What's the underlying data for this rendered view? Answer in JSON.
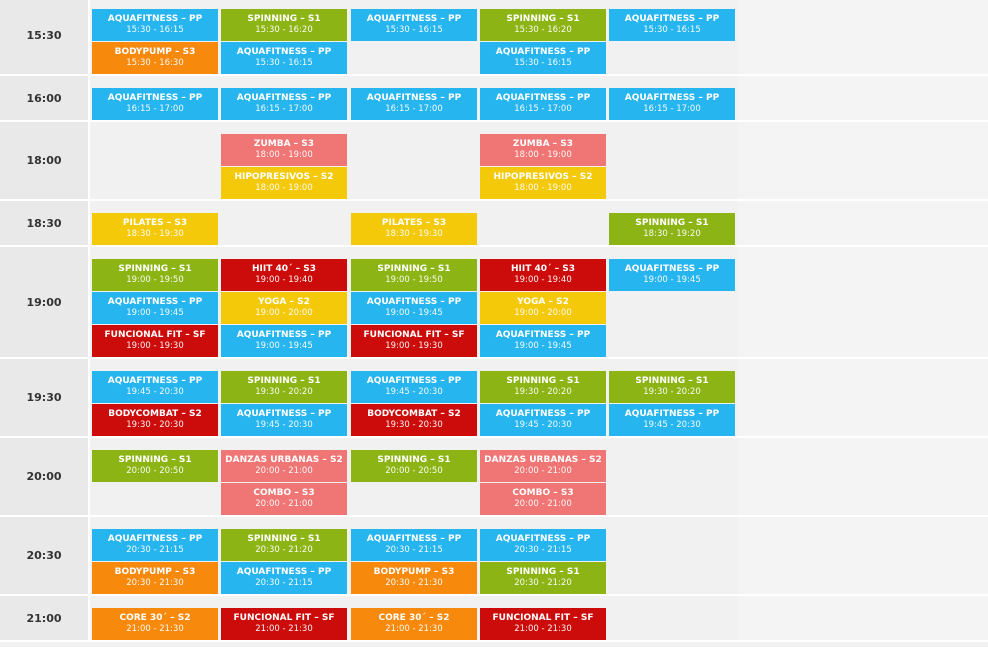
{
  "schedule": [
    {
      "time": "15:30",
      "columns": [
        [
          {
            "name": "AQUAFITNESS – PP",
            "hours": "15:30 - 16:15",
            "color": "#26b5ef"
          },
          {
            "name": "BODYPUMP – S3",
            "hours": "15:30 - 16:30",
            "color": "#f7890c"
          }
        ],
        [
          {
            "name": "SPINNING – S1",
            "hours": "15:30 - 16:20",
            "color": "#8cb414"
          },
          {
            "name": "AQUAFITNESS – PP",
            "hours": "15:30 - 16:15",
            "color": "#26b5ef"
          }
        ],
        [
          {
            "name": "AQUAFITNESS – PP",
            "hours": "15:30 - 16:15",
            "color": "#26b5ef"
          }
        ],
        [
          {
            "name": "SPINNING – S1",
            "hours": "15:30 - 16:20",
            "color": "#8cb414"
          },
          {
            "name": "AQUAFITNESS – PP",
            "hours": "15:30 - 16:15",
            "color": "#26b5ef"
          }
        ],
        [
          {
            "name": "AQUAFITNESS – PP",
            "hours": "15:30 - 16:15",
            "color": "#26b5ef"
          }
        ]
      ]
    },
    {
      "time": "16:00",
      "columns": [
        [
          {
            "name": "AQUAFITNESS – PP",
            "hours": "16:15 - 17:00",
            "color": "#26b5ef"
          }
        ],
        [
          {
            "name": "AQUAFITNESS – PP",
            "hours": "16:15 - 17:00",
            "color": "#26b5ef"
          }
        ],
        [
          {
            "name": "AQUAFITNESS – PP",
            "hours": "16:15 - 17:00",
            "color": "#26b5ef"
          }
        ],
        [
          {
            "name": "AQUAFITNESS – PP",
            "hours": "16:15 - 17:00",
            "color": "#26b5ef"
          }
        ],
        [
          {
            "name": "AQUAFITNESS – PP",
            "hours": "16:15 - 17:00",
            "color": "#26b5ef"
          }
        ]
      ]
    },
    {
      "time": "18:00",
      "columns": [
        [],
        [
          {
            "name": "ZUMBA – S3",
            "hours": "18:00 - 19:00",
            "color": "#f07575"
          },
          {
            "name": "HIPOPRESIVOS – S2",
            "hours": "18:00 - 19:00",
            "color": "#f4c90a"
          }
        ],
        [],
        [
          {
            "name": "ZUMBA – S3",
            "hours": "18:00 - 19:00",
            "color": "#f07575"
          },
          {
            "name": "HIPOPRESIVOS – S2",
            "hours": "18:00 - 19:00",
            "color": "#f4c90a"
          }
        ],
        []
      ]
    },
    {
      "time": "18:30",
      "columns": [
        [
          {
            "name": "PILATES – S3",
            "hours": "18:30 - 19:30",
            "color": "#f4c90a"
          }
        ],
        [],
        [
          {
            "name": "PILATES – S3",
            "hours": "18:30 - 19:30",
            "color": "#f4c90a"
          }
        ],
        [],
        [
          {
            "name": "SPINNING – S1",
            "hours": "18:30 - 19:20",
            "color": "#8cb414"
          }
        ]
      ]
    },
    {
      "time": "19:00",
      "columns": [
        [
          {
            "name": "SPINNING – S1",
            "hours": "19:00 - 19:50",
            "color": "#8cb414"
          },
          {
            "name": "AQUAFITNESS – PP",
            "hours": "19:00 - 19:45",
            "color": "#26b5ef"
          },
          {
            "name": "FUNCIONAL FIT – SF",
            "hours": "19:00 - 19:30",
            "color": "#cc0b0b"
          }
        ],
        [
          {
            "name": "HIIT 40´ – S3",
            "hours": "19:00 - 19:40",
            "color": "#cc0b0b"
          },
          {
            "name": "YOGA – S2",
            "hours": "19:00 - 20:00",
            "color": "#f4c90a"
          },
          {
            "name": "AQUAFITNESS – PP",
            "hours": "19:00 - 19:45",
            "color": "#26b5ef"
          }
        ],
        [
          {
            "name": "SPINNING – S1",
            "hours": "19:00 - 19:50",
            "color": "#8cb414"
          },
          {
            "name": "AQUAFITNESS – PP",
            "hours": "19:00 - 19:45",
            "color": "#26b5ef"
          },
          {
            "name": "FUNCIONAL FIT – SF",
            "hours": "19:00 - 19:30",
            "color": "#cc0b0b"
          }
        ],
        [
          {
            "name": "HIIT 40´ – S3",
            "hours": "19:00 - 19:40",
            "color": "#cc0b0b"
          },
          {
            "name": "YOGA – S2",
            "hours": "19:00 - 20:00",
            "color": "#f4c90a"
          },
          {
            "name": "AQUAFITNESS – PP",
            "hours": "19:00 - 19:45",
            "color": "#26b5ef"
          }
        ],
        [
          {
            "name": "AQUAFITNESS – PP",
            "hours": "19:00 - 19:45",
            "color": "#26b5ef"
          }
        ]
      ]
    },
    {
      "time": "19:30",
      "columns": [
        [
          {
            "name": "AQUAFITNESS – PP",
            "hours": "19:45 - 20:30",
            "color": "#26b5ef"
          },
          {
            "name": "BODYCOMBAT – S2",
            "hours": "19:30 - 20:30",
            "color": "#cc0b0b"
          }
        ],
        [
          {
            "name": "SPINNING – S1",
            "hours": "19:30 - 20:20",
            "color": "#8cb414"
          },
          {
            "name": "AQUAFITNESS – PP",
            "hours": "19:45 - 20:30",
            "color": "#26b5ef"
          }
        ],
        [
          {
            "name": "AQUAFITNESS – PP",
            "hours": "19:45 - 20:30",
            "color": "#26b5ef"
          },
          {
            "name": "BODYCOMBAT – S2",
            "hours": "19:30 - 20:30",
            "color": "#cc0b0b"
          }
        ],
        [
          {
            "name": "SPINNING – S1",
            "hours": "19:30 - 20:20",
            "color": "#8cb414"
          },
          {
            "name": "AQUAFITNESS – PP",
            "hours": "19:45 - 20:30",
            "color": "#26b5ef"
          }
        ],
        [
          {
            "name": "SPINNING – S1",
            "hours": "19:30 - 20:20",
            "color": "#8cb414"
          },
          {
            "name": "AQUAFITNESS – PP",
            "hours": "19:45 - 20:30",
            "color": "#26b5ef"
          }
        ]
      ]
    },
    {
      "time": "20:00",
      "columns": [
        [
          {
            "name": "SPINNING – S1",
            "hours": "20:00 - 20:50",
            "color": "#8cb414"
          }
        ],
        [
          {
            "name": "DANZAS URBANAS – S2",
            "hours": "20:00 - 21:00",
            "color": "#f07575"
          },
          {
            "name": "COMBO – S3",
            "hours": "20:00 - 21:00",
            "color": "#f07575"
          }
        ],
        [
          {
            "name": "SPINNING – S1",
            "hours": "20:00 - 20:50",
            "color": "#8cb414"
          }
        ],
        [
          {
            "name": "DANZAS URBANAS – S2",
            "hours": "20:00 - 21:00",
            "color": "#f07575"
          },
          {
            "name": "COMBO – S3",
            "hours": "20:00 - 21:00",
            "color": "#f07575"
          }
        ],
        []
      ]
    },
    {
      "time": "20:30",
      "columns": [
        [
          {
            "name": "AQUAFITNESS – PP",
            "hours": "20:30 - 21:15",
            "color": "#26b5ef"
          },
          {
            "name": "BODYPUMP – S3",
            "hours": "20:30 - 21:30",
            "color": "#f7890c"
          }
        ],
        [
          {
            "name": "SPINNING – S1",
            "hours": "20:30 - 21:20",
            "color": "#8cb414"
          },
          {
            "name": "AQUAFITNESS – PP",
            "hours": "20:30 - 21:15",
            "color": "#26b5ef"
          }
        ],
        [
          {
            "name": "AQUAFITNESS – PP",
            "hours": "20:30 - 21:15",
            "color": "#26b5ef"
          },
          {
            "name": "BODYPUMP – S3",
            "hours": "20:30 - 21:30",
            "color": "#f7890c"
          }
        ],
        [
          {
            "name": "AQUAFITNESS – PP",
            "hours": "20:30 - 21:15",
            "color": "#26b5ef"
          },
          {
            "name": "SPINNING – S1",
            "hours": "20:30 - 21:20",
            "color": "#8cb414"
          }
        ],
        []
      ]
    },
    {
      "time": "21:00",
      "columns": [
        [
          {
            "name": "CORE 30´ – S2",
            "hours": "21:00 - 21:30",
            "color": "#f7890c"
          }
        ],
        [
          {
            "name": "FUNCIONAL FIT – SF",
            "hours": "21:00 - 21:30",
            "color": "#cc0b0b"
          }
        ],
        [
          {
            "name": "CORE 30´ – S2",
            "hours": "21:00 - 21:30",
            "color": "#f7890c"
          }
        ],
        [
          {
            "name": "FUNCIONAL FIT – SF",
            "hours": "21:00 - 21:30",
            "color": "#cc0b0b"
          }
        ],
        []
      ]
    }
  ]
}
